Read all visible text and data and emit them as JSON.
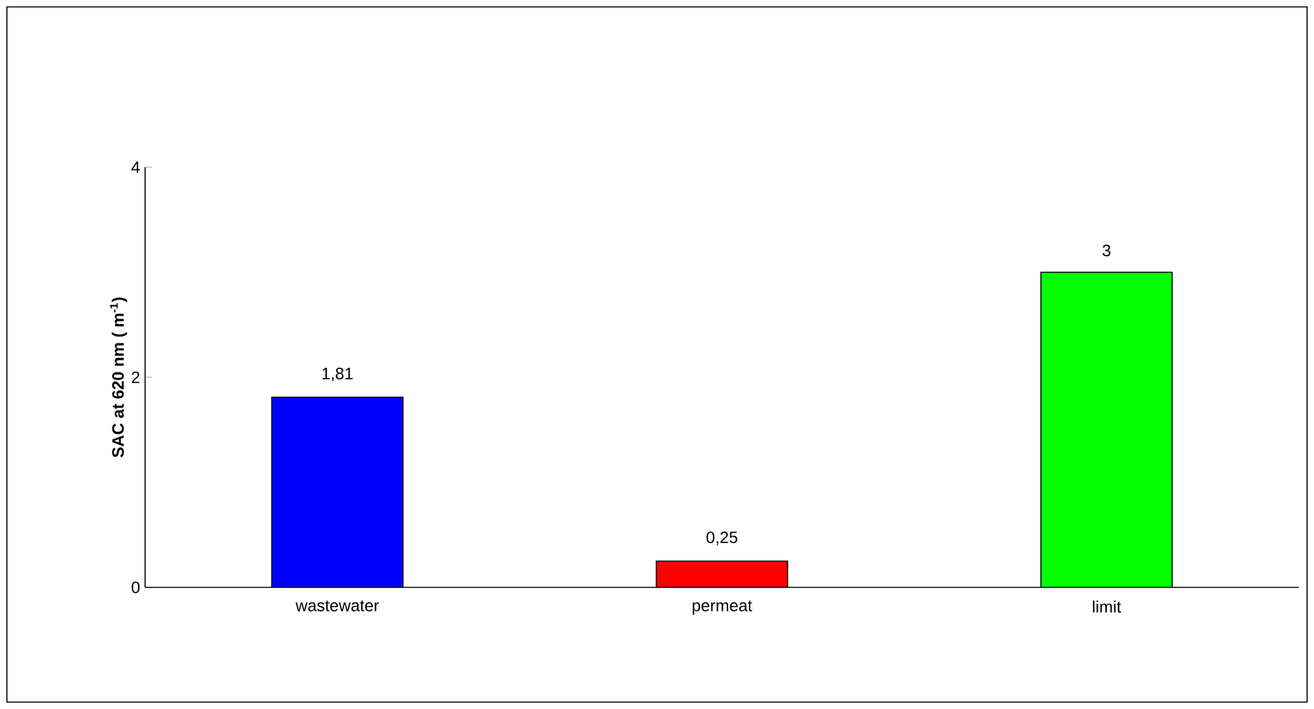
{
  "chart_data": {
    "type": "bar",
    "ylabel": "SAC at 620 nm ( m$^{-1}$)",
    "categories": [
      "wastewater",
      "permeat",
      "limit"
    ],
    "values": [
      1.81,
      0.25,
      3
    ],
    "colors": [
      "#0000ff",
      "#ff0000",
      "#00ff00"
    ],
    "value_labels": [
      "1,81",
      "0,25",
      "3"
    ],
    "ylim": [
      0,
      4
    ],
    "yticks": [
      0,
      2,
      4
    ],
    "grid": false
  }
}
